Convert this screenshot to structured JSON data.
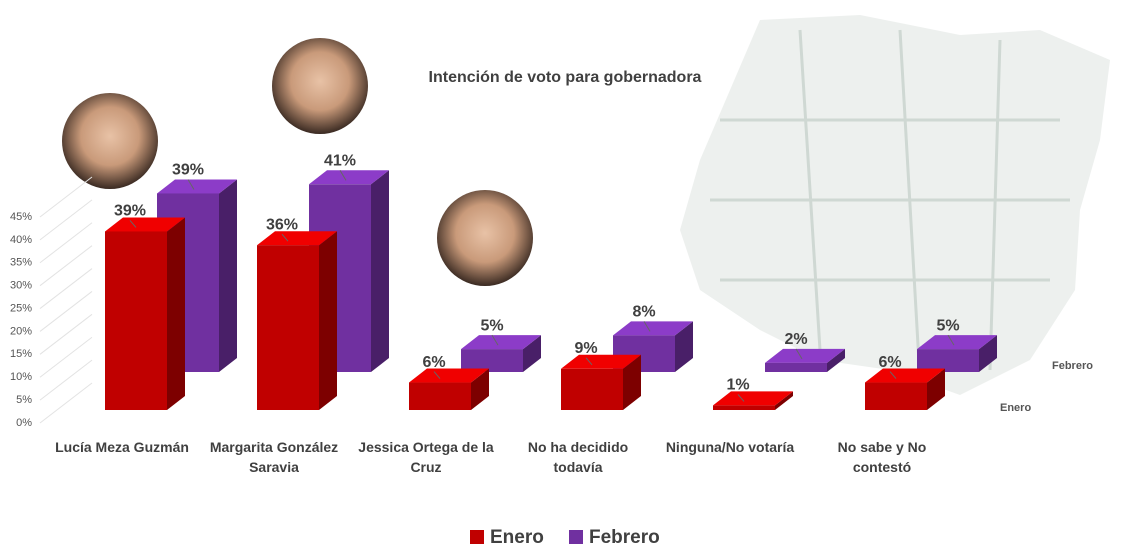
{
  "chart_data": {
    "type": "bar3d",
    "title": "Intención de voto para gobernadora",
    "categories": [
      "Lucía Meza Guzmán",
      "Margarita González Saravia",
      "Jessica Ortega de la Cruz",
      "No ha decidido todavía",
      "Ninguna/No votaría",
      "No sabe y No contestó"
    ],
    "series": [
      {
        "name": "Enero",
        "color": "#c00000",
        "values": [
          39,
          36,
          6,
          9,
          1,
          6
        ],
        "value_labels": [
          "39%",
          "36%",
          "6%",
          "9%",
          "1%",
          "6%"
        ]
      },
      {
        "name": "Febrero",
        "color": "#7030a0",
        "values": [
          39,
          41,
          5,
          8,
          2,
          5
        ],
        "value_labels": [
          "39%",
          "41%",
          "5%",
          "8%",
          "2%",
          "5%"
        ]
      }
    ],
    "ylim": [
      0,
      45
    ],
    "yticks": [
      {
        "value": 0,
        "label": "0%"
      },
      {
        "value": 5,
        "label": "5%"
      },
      {
        "value": 10,
        "label": "10%"
      },
      {
        "value": 15,
        "label": "15%"
      },
      {
        "value": 20,
        "label": "20%"
      },
      {
        "value": 25,
        "label": "25%"
      },
      {
        "value": 30,
        "label": "30%"
      },
      {
        "value": 35,
        "label": "35%"
      },
      {
        "value": 40,
        "label": "40%"
      },
      {
        "value": 45,
        "label": "45%"
      }
    ],
    "grid": true
  }
}
